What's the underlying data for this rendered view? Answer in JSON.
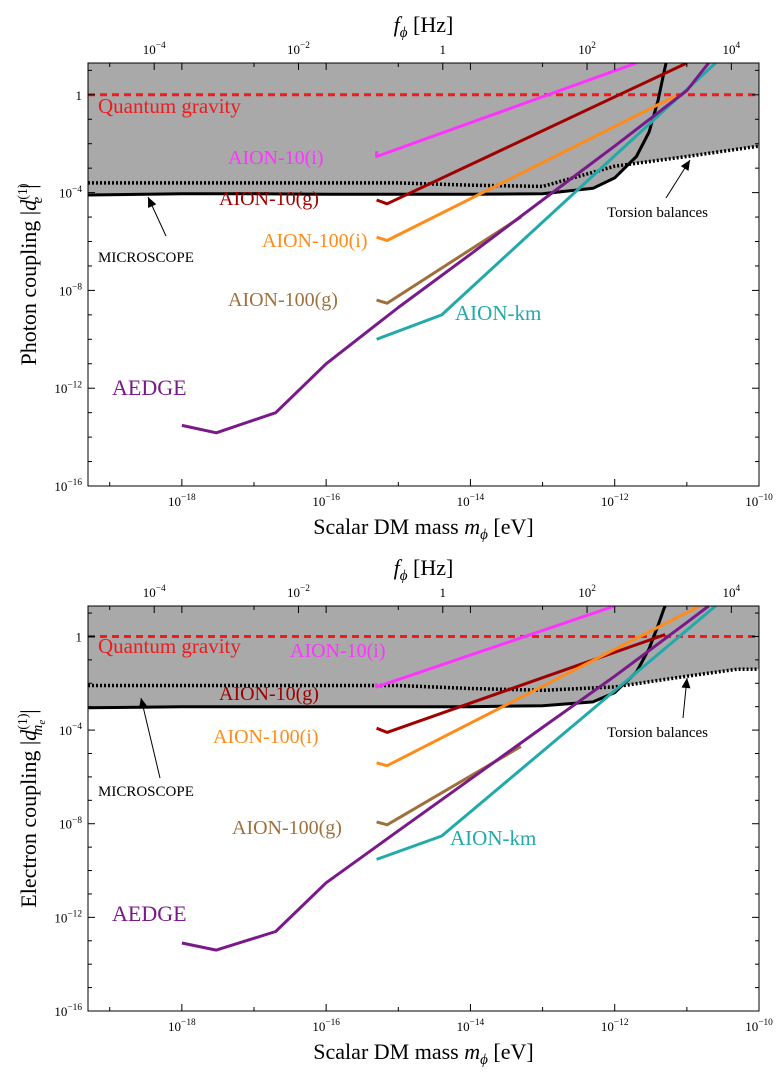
{
  "colors": {
    "excluded_region": "#a9a9a9",
    "quantum_gravity": "#ee1c1c",
    "microscope": "#000000",
    "torsion": "#000000",
    "aion10i": "#ff33ff",
    "aion10g": "#a00000",
    "aion100i": "#ff8c1a",
    "aion100g": "#a0703c",
    "aionkm": "#22aaaa",
    "aedge": "#7a1a8a"
  },
  "chart_data": [
    {
      "type": "line",
      "title": "",
      "xlabel": "Scalar DM mass",
      "xlabel_symbol": "m",
      "xlabel_sub": "ϕ",
      "xlabel_unit": "[eV]",
      "ylabel": "Photon coupling",
      "ylabel_sym": "d",
      "ylabel_sub": "e",
      "ylabel_sup": "(1)",
      "x_scale": "log",
      "y_scale": "log",
      "xlim": [
        5e-20,
        1e-10
      ],
      "ylim": [
        1e-16,
        20
      ],
      "x_ticks": [
        1e-18,
        1e-16,
        1e-14,
        1e-12,
        1e-10
      ],
      "y_ticks": [
        1e-16,
        1e-12,
        1e-08,
        0.0001,
        1
      ],
      "x_tick_labels": [
        {
          "base": "10",
          "exp": "−18"
        },
        {
          "base": "10",
          "exp": "−16"
        },
        {
          "base": "10",
          "exp": "−14"
        },
        {
          "base": "10",
          "exp": "−12"
        },
        {
          "base": "10",
          "exp": "−10"
        }
      ],
      "y_tick_labels": [
        {
          "base": "10",
          "exp": "−16"
        },
        {
          "base": "10",
          "exp": "−12"
        },
        {
          "base": "10",
          "exp": "−8"
        },
        {
          "base": "10",
          "exp": "−4"
        },
        {
          "base": "",
          "exp": "",
          "plain": "1"
        }
      ],
      "top_axis": {
        "label": "f",
        "label_sub": "ϕ",
        "unit": "[Hz]",
        "ticks_hz": [
          0.0001,
          0.01,
          1,
          100,
          10000
        ],
        "tick_labels": [
          {
            "base": "10",
            "exp": "−4"
          },
          {
            "base": "10",
            "exp": "−2"
          },
          {
            "base": "",
            "exp": "",
            "plain": "1"
          },
          {
            "base": "10",
            "exp": "2"
          },
          {
            "base": "10",
            "exp": "4"
          }
        ]
      },
      "series": [
        {
          "name": "Quantum gravity",
          "color_key": "quantum_gravity",
          "style": "dashed",
          "x": [
            5e-20,
            1e-10
          ],
          "y": [
            1,
            1
          ]
        },
        {
          "name": "MICROSCOPE",
          "color_key": "microscope",
          "style": "solid",
          "x": [
            5e-20,
            1e-18,
            1e-17,
            1e-16,
            1e-15,
            1e-14,
            1e-13,
            5e-13,
            1e-12,
            2e-12,
            3e-12,
            4e-12,
            4.8e-12,
            5.3e-12
          ],
          "y": [
            8e-05,
            9e-05,
            9e-05,
            8.5e-05,
            8.5e-05,
            8.5e-05,
            9e-05,
            0.00015,
            0.0004,
            0.003,
            0.03,
            0.6,
            8,
            30
          ]
        },
        {
          "name": "Torsion balances",
          "color_key": "torsion",
          "style": "dotted",
          "x": [
            5e-20,
            1e-17,
            1e-15,
            1e-14,
            1e-13,
            1e-12,
            1e-11,
            1e-10
          ],
          "y": [
            0.00025,
            0.00025,
            0.00025,
            0.0002,
            0.00018,
            0.0012,
            0.003,
            0.008
          ]
        },
        {
          "name": "AION-10(i)",
          "color_key": "aion10i",
          "style": "solid",
          "x": [
            5e-16,
            5e-16,
            2e-12
          ],
          "y": [
            0.005,
            0.003,
            20
          ]
        },
        {
          "name": "AION-10(g)",
          "color_key": "aion10g",
          "style": "solid",
          "x": [
            5e-16,
            7e-16,
            1e-11
          ],
          "y": [
            5e-05,
            3.5e-05,
            20
          ]
        },
        {
          "name": "AION-100(i)",
          "color_key": "aion100i",
          "style": "solid",
          "x": [
            5e-16,
            7e-16,
            7e-12
          ],
          "y": [
            1.5e-06,
            1.1e-06,
            0.9
          ]
        },
        {
          "name": "AION-100(g)",
          "color_key": "aion100g",
          "style": "solid",
          "x": [
            5e-16,
            7e-16,
            5e-14
          ],
          "y": [
            4e-09,
            3e-09,
            1e-05
          ]
        },
        {
          "name": "AION-km",
          "color_key": "aionkm",
          "style": "solid",
          "x": [
            5e-16,
            4e-15,
            2.5e-11
          ],
          "y": [
            1e-10,
            1e-09,
            20
          ]
        },
        {
          "name": "AEDGE",
          "color_key": "aedge",
          "style": "solid",
          "x": [
            1e-18,
            3e-18,
            2e-17,
            1e-16,
            1e-15,
            1e-14,
            1e-13,
            1e-12,
            1e-11,
            2e-11
          ],
          "y": [
            3e-14,
            1.5e-14,
            1e-13,
            1e-11,
            2e-09,
            3e-07,
            5e-05,
            0.008,
            1.5,
            20
          ]
        }
      ],
      "shaded_region": {
        "description_key": "excluded_region"
      },
      "annotations": [
        {
          "text": "Quantum gravity",
          "color_key": "quantum_gravity"
        },
        {
          "text": "AION-10(i)",
          "color_key": "aion10i"
        },
        {
          "text": "AION-10(g)",
          "color_key": "aion10g"
        },
        {
          "text": "AION-100(i)",
          "color_key": "aion100i"
        },
        {
          "text": "AION-100(g)",
          "color_key": "aion100g"
        },
        {
          "text": "AION-km",
          "color_key": "aionkm"
        },
        {
          "text": "AEDGE",
          "color_key": "aedge"
        },
        {
          "text": "MICROSCOPE",
          "color_key": "microscope"
        },
        {
          "text": "Torsion balances",
          "color_key": "torsion"
        }
      ]
    },
    {
      "type": "line",
      "title": "",
      "xlabel": "Scalar DM mass",
      "xlabel_symbol": "m",
      "xlabel_sub": "ϕ",
      "xlabel_unit": "[eV]",
      "ylabel": "Electron coupling",
      "ylabel_sym": "d",
      "ylabel_sub": "m",
      "ylabel_subsub": "e",
      "ylabel_sup": "(1)",
      "x_scale": "log",
      "y_scale": "log",
      "xlim": [
        5e-20,
        1e-10
      ],
      "ylim": [
        1e-16,
        20
      ],
      "x_ticks": [
        1e-18,
        1e-16,
        1e-14,
        1e-12,
        1e-10
      ],
      "y_ticks": [
        1e-16,
        1e-12,
        1e-08,
        0.0001,
        1
      ],
      "x_tick_labels": [
        {
          "base": "10",
          "exp": "−18"
        },
        {
          "base": "10",
          "exp": "−16"
        },
        {
          "base": "10",
          "exp": "−14"
        },
        {
          "base": "10",
          "exp": "−12"
        },
        {
          "base": "10",
          "exp": "−10"
        }
      ],
      "y_tick_labels": [
        {
          "base": "10",
          "exp": "−16"
        },
        {
          "base": "10",
          "exp": "−12"
        },
        {
          "base": "10",
          "exp": "−8"
        },
        {
          "base": "10",
          "exp": "−4"
        },
        {
          "base": "",
          "exp": "",
          "plain": "1"
        }
      ],
      "top_axis": {
        "label": "f",
        "label_sub": "ϕ",
        "unit": "[Hz]",
        "ticks_hz": [
          0.0001,
          0.01,
          1,
          100,
          10000
        ],
        "tick_labels": [
          {
            "base": "10",
            "exp": "−4"
          },
          {
            "base": "10",
            "exp": "−2"
          },
          {
            "base": "",
            "exp": "",
            "plain": "1"
          },
          {
            "base": "10",
            "exp": "2"
          },
          {
            "base": "10",
            "exp": "4"
          }
        ]
      },
      "series": [
        {
          "name": "Quantum gravity",
          "color_key": "quantum_gravity",
          "style": "dashed",
          "x": [
            5e-20,
            1e-10
          ],
          "y": [
            1,
            1
          ]
        },
        {
          "name": "MICROSCOPE",
          "color_key": "microscope",
          "style": "solid",
          "x": [
            5e-20,
            1e-18,
            1e-17,
            1e-16,
            1e-15,
            1e-14,
            1e-13,
            5e-13,
            1e-12,
            2e-12,
            3e-12,
            4e-12,
            4.8e-12,
            5.3e-12
          ],
          "y": [
            0.0009,
            0.001,
            0.001,
            0.001,
            0.001,
            0.001,
            0.0011,
            0.0016,
            0.004,
            0.03,
            0.3,
            3,
            15,
            30
          ]
        },
        {
          "name": "Torsion balances",
          "color_key": "torsion",
          "style": "dotted",
          "x": [
            5e-20,
            1e-17,
            1e-15,
            1e-14,
            1e-13,
            1e-12,
            1e-11,
            5e-11,
            1e-10
          ],
          "y": [
            0.008,
            0.008,
            0.008,
            0.006,
            0.005,
            0.007,
            0.02,
            0.04,
            0.04
          ]
        },
        {
          "name": "AION-10(i)",
          "color_key": "aion10i",
          "style": "solid",
          "x": [
            5e-16,
            5e-16,
            1e-12
          ],
          "y": [
            0.01,
            0.007,
            20
          ]
        },
        {
          "name": "AION-10(g)",
          "color_key": "aion10g",
          "style": "solid",
          "x": [
            5e-16,
            7e-16,
            5e-12
          ],
          "y": [
            0.00012,
            8e-05,
            1.2
          ]
        },
        {
          "name": "AION-100(i)",
          "color_key": "aion100i",
          "style": "solid",
          "x": [
            5e-16,
            7e-16,
            1.5e-11
          ],
          "y": [
            4e-06,
            3e-06,
            20
          ]
        },
        {
          "name": "AION-100(g)",
          "color_key": "aion100g",
          "style": "solid",
          "x": [
            5e-16,
            7e-16,
            5e-14
          ],
          "y": [
            1.2e-08,
            9e-09,
            2e-05
          ]
        },
        {
          "name": "AION-km",
          "color_key": "aionkm",
          "style": "solid",
          "x": [
            5e-16,
            4e-15,
            2.5e-11
          ],
          "y": [
            3e-10,
            3e-09,
            20
          ]
        },
        {
          "name": "AEDGE",
          "color_key": "aedge",
          "style": "solid",
          "x": [
            1e-18,
            3e-18,
            2e-17,
            1e-16,
            1e-15,
            1e-14,
            1e-13,
            1e-12,
            1e-11,
            2e-11
          ],
          "y": [
            8e-14,
            4e-14,
            2.5e-13,
            3e-11,
            5e-09,
            8e-07,
            0.00013,
            0.02,
            4,
            20
          ]
        }
      ],
      "shaded_region": {
        "description_key": "excluded_region"
      },
      "annotations": [
        {
          "text": "Quantum gravity",
          "color_key": "quantum_gravity"
        },
        {
          "text": "AION-10(i)",
          "color_key": "aion10i"
        },
        {
          "text": "AION-10(g)",
          "color_key": "aion10g"
        },
        {
          "text": "AION-100(i)",
          "color_key": "aion100i"
        },
        {
          "text": "AION-100(g)",
          "color_key": "aion100g"
        },
        {
          "text": "AION-km",
          "color_key": "aionkm"
        },
        {
          "text": "AEDGE",
          "color_key": "aedge"
        },
        {
          "text": "MICROSCOPE",
          "color_key": "microscope"
        },
        {
          "text": "Torsion balances",
          "color_key": "torsion"
        }
      ]
    }
  ]
}
